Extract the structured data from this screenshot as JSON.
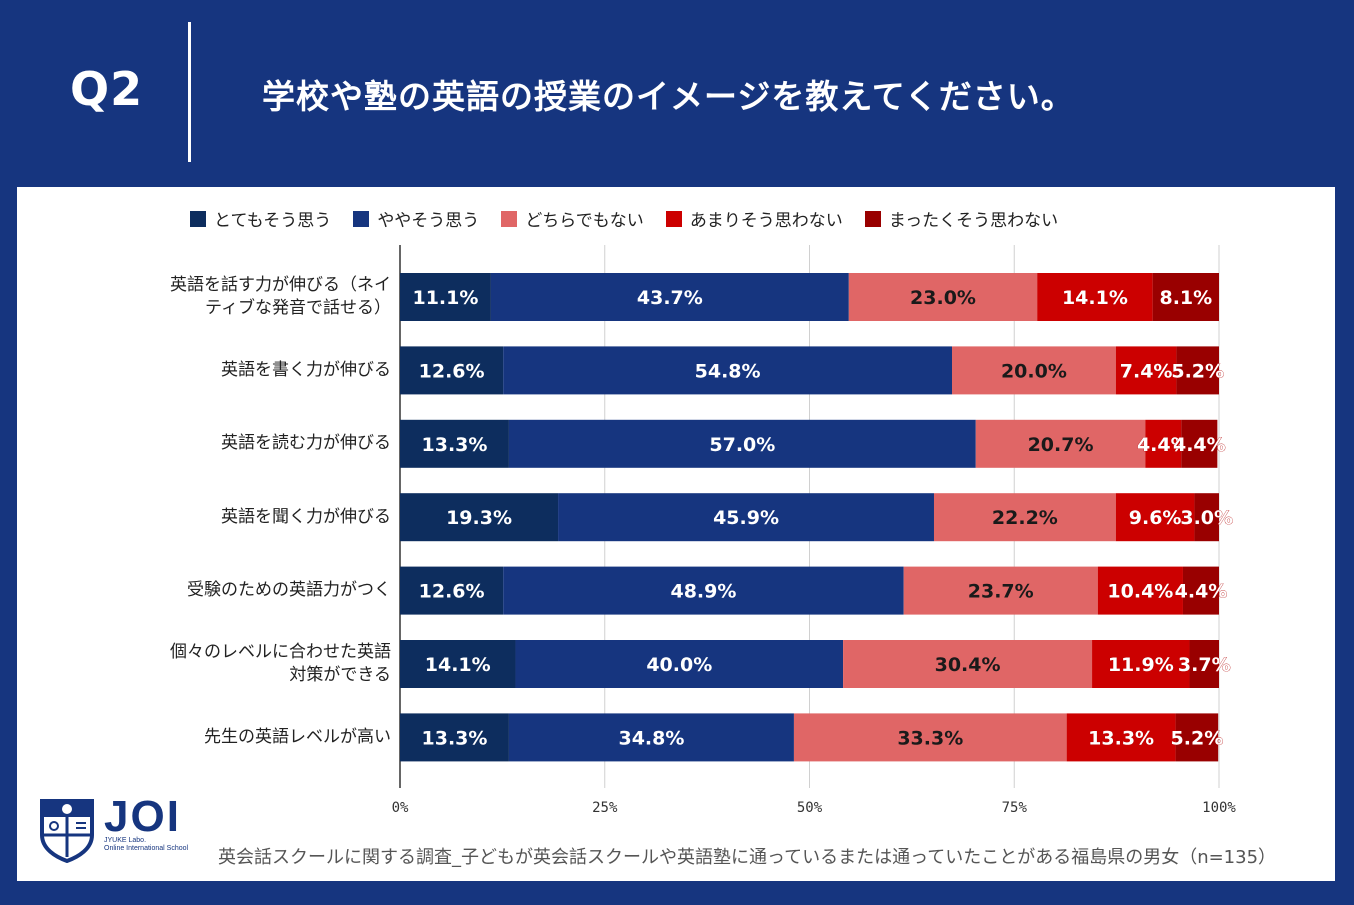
{
  "header": {
    "q_label": "Q2",
    "question": "学校や塾の英語の授業のイメージを教えてください。"
  },
  "legend": [
    {
      "label": "とてもそう思う",
      "color": "#0d2d5e"
    },
    {
      "label": "ややそう思う",
      "color": "#16357f"
    },
    {
      "label": "どちらでもない",
      "color": "#e06666"
    },
    {
      "label": "あまりそう思わない",
      "color": "#cc0000"
    },
    {
      "label": "まったくそう思わない",
      "color": "#990000"
    }
  ],
  "chart_data": {
    "type": "bar",
    "orientation": "horizontal-stacked-100",
    "categories": [
      [
        "英語を話す力が伸びる（ネイ",
        "ティブな発音で話せる）"
      ],
      [
        "英語を書く力が伸びる"
      ],
      [
        "英語を読む力が伸びる"
      ],
      [
        "英語を聞く力が伸びる"
      ],
      [
        "受験のための英語力がつく"
      ],
      [
        "個々のレベルに合わせた英語",
        "対策ができる"
      ],
      [
        "先生の英語レベルが高い"
      ]
    ],
    "series": [
      {
        "name": "とてもそう思う",
        "color": "#0d2d5e",
        "values": [
          11.1,
          12.6,
          13.3,
          19.3,
          12.6,
          14.1,
          13.3
        ],
        "labels": [
          "11.1%",
          "12.6%",
          "13.3%",
          "19.3%",
          "12.6%",
          "14.1%",
          "13.3%"
        ]
      },
      {
        "name": "ややそう思う",
        "color": "#16357f",
        "values": [
          43.7,
          54.8,
          57.0,
          45.9,
          48.9,
          40.0,
          34.8
        ],
        "labels": [
          "43.7%",
          "54.8%",
          "57.0%",
          "45.9%",
          "48.9%",
          "40.0%",
          "34.8%"
        ]
      },
      {
        "name": "どちらでもない",
        "color": "#e06666",
        "values": [
          23.0,
          20.0,
          20.7,
          22.2,
          23.7,
          30.4,
          33.3
        ],
        "labels": [
          "23.0%",
          "20.0%",
          "20.7%",
          "22.2%",
          "23.7%",
          "30.4%",
          "33.3%"
        ]
      },
      {
        "name": "あまりそう思わない",
        "color": "#cc0000",
        "values": [
          14.1,
          7.4,
          4.4,
          9.6,
          10.4,
          11.9,
          13.3
        ],
        "labels": [
          "14.1%",
          "7.4%",
          "4.4%",
          "9.6%",
          "10.4%",
          "11.9%",
          "13.3%"
        ]
      },
      {
        "name": "まったくそう思わない",
        "color": "#990000",
        "values": [
          8.1,
          5.2,
          4.4,
          3.0,
          4.4,
          3.7,
          5.2
        ],
        "labels": [
          "8.1%",
          "5.2%",
          "4.4%",
          "3.0%",
          "4.4%",
          "3.7%",
          "5.2%"
        ]
      }
    ],
    "xticks": [
      "0%",
      "25%",
      "50%",
      "75%",
      "100%"
    ],
    "xlim": [
      0,
      100
    ],
    "grid": true,
    "legend_position": "top"
  },
  "footer": {
    "note": "英会話スクールに関する調査_子どもが英会話スクールや英語塾に通っているまたは通っていたことがある福島県の男女（n=135）",
    "logo_main": "JOI",
    "logo_sub1": "JYUKE Labo.",
    "logo_sub2": "Online International School"
  }
}
